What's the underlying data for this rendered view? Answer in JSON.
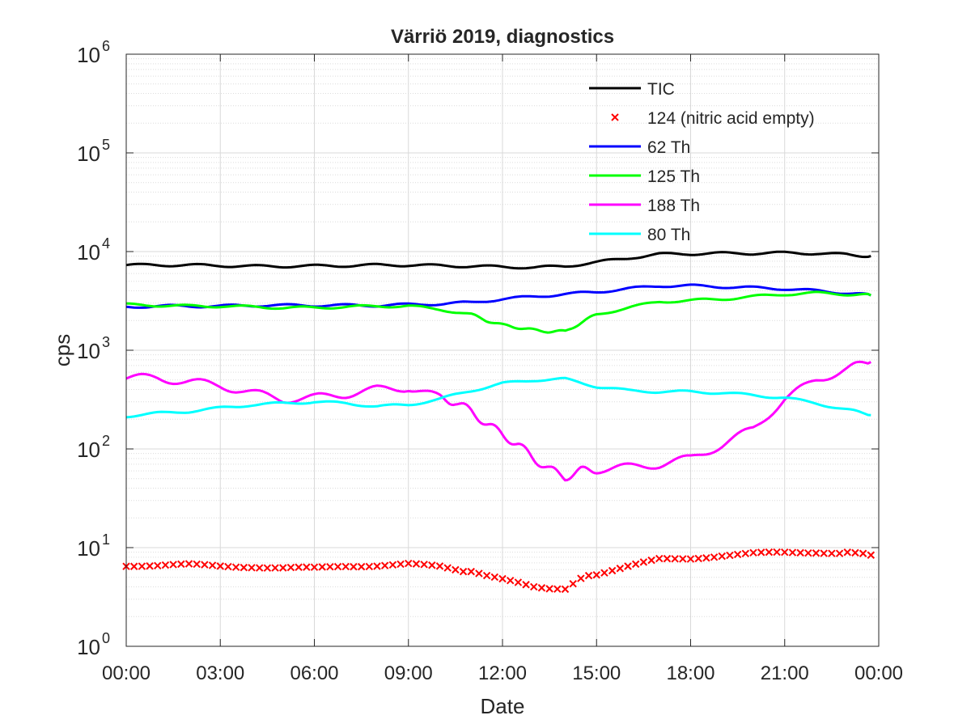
{
  "chart_data": {
    "type": "line",
    "title": "Värriö 2019, diagnostics",
    "xlabel": "Date",
    "ylabel": "cps",
    "x_ticks": [
      "00:00",
      "03:00",
      "06:00",
      "09:00",
      "12:00",
      "15:00",
      "18:00",
      "21:00",
      "00:00"
    ],
    "xlim_hours": [
      0,
      24
    ],
    "y_scale": "log",
    "ylim": [
      1,
      1000000
    ],
    "y_ticks": [
      {
        "base": "10",
        "exp": "0"
      },
      {
        "base": "10",
        "exp": "1"
      },
      {
        "base": "10",
        "exp": "2"
      },
      {
        "base": "10",
        "exp": "3"
      },
      {
        "base": "10",
        "exp": "4"
      },
      {
        "base": "10",
        "exp": "5"
      },
      {
        "base": "10",
        "exp": "6"
      }
    ],
    "grid": true,
    "legend_position": "top-right",
    "series": [
      {
        "name": "TIC",
        "color": "#000000",
        "style": "line",
        "x": [
          "00:00",
          "01:00",
          "02:00",
          "03:00",
          "04:00",
          "05:00",
          "06:00",
          "07:00",
          "08:00",
          "09:00",
          "10:00",
          "11:00",
          "12:00",
          "13:00",
          "14:00",
          "15:00",
          "16:00",
          "17:00",
          "18:00",
          "19:00",
          "20:00",
          "21:00",
          "22:00",
          "23:00",
          "23:45"
        ],
        "y": [
          7300,
          7300,
          7300,
          7200,
          7100,
          7100,
          7150,
          7200,
          7300,
          7300,
          7200,
          7100,
          7000,
          6900,
          7100,
          7800,
          8600,
          9400,
          9500,
          9600,
          9600,
          9700,
          9600,
          9300,
          9000
        ]
      },
      {
        "name": "124 (nitric acid empty)",
        "color": "#ff0000",
        "style": "marker",
        "x": [
          "00:00",
          "01:00",
          "02:00",
          "03:00",
          "04:00",
          "05:00",
          "06:00",
          "07:00",
          "08:00",
          "09:00",
          "10:00",
          "11:00",
          "11:30",
          "12:00",
          "12:30",
          "13:00",
          "13:30",
          "14:00",
          "14:30",
          "15:00",
          "16:00",
          "17:00",
          "18:00",
          "19:00",
          "20:00",
          "21:00",
          "22:00",
          "23:00",
          "23:45"
        ],
        "y": [
          6.6,
          6.6,
          6.7,
          6.5,
          6.4,
          6.2,
          6.2,
          6.5,
          6.6,
          6.8,
          6.4,
          5.6,
          5.1,
          4.8,
          4.5,
          4.1,
          3.9,
          3.8,
          4.8,
          5.4,
          6.4,
          7.6,
          7.8,
          8.3,
          8.7,
          8.9,
          9.0,
          8.8,
          8.4
        ]
      },
      {
        "name": "62 Th",
        "color": "#0000ff",
        "style": "line",
        "x": [
          "00:00",
          "01:00",
          "02:00",
          "03:00",
          "04:00",
          "05:00",
          "06:00",
          "07:00",
          "08:00",
          "09:00",
          "10:00",
          "11:00",
          "12:00",
          "13:00",
          "14:00",
          "15:00",
          "16:00",
          "17:00",
          "18:00",
          "19:00",
          "20:00",
          "21:00",
          "22:00",
          "23:00",
          "23:45"
        ],
        "y": [
          2750,
          2800,
          2800,
          2800,
          2850,
          2850,
          2850,
          2850,
          2850,
          2900,
          2950,
          3050,
          3300,
          3500,
          3700,
          3900,
          4200,
          4500,
          4500,
          4400,
          4300,
          4200,
          4000,
          3800,
          3600
        ]
      },
      {
        "name": "125 Th",
        "color": "#00ff00",
        "style": "line",
        "x": [
          "00:00",
          "01:00",
          "02:00",
          "03:00",
          "04:00",
          "05:00",
          "06:00",
          "07:00",
          "08:00",
          "09:00",
          "10:00",
          "11:00",
          "11:30",
          "12:00",
          "12:30",
          "13:00",
          "13:30",
          "14:00",
          "14:30",
          "15:00",
          "16:00",
          "17:00",
          "18:00",
          "19:00",
          "20:00",
          "21:00",
          "22:00",
          "23:00",
          "23:45"
        ],
        "y": [
          2900,
          2850,
          2800,
          2800,
          2750,
          2700,
          2700,
          2750,
          2800,
          2800,
          2600,
          2300,
          2000,
          1800,
          1700,
          1600,
          1550,
          1550,
          1900,
          2300,
          2700,
          3100,
          3200,
          3300,
          3500,
          3700,
          3800,
          3700,
          3600
        ]
      },
      {
        "name": "188 Th",
        "color": "#ff00ff",
        "style": "line",
        "x": [
          "00:00",
          "01:00",
          "02:00",
          "03:00",
          "04:00",
          "05:00",
          "06:00",
          "07:00",
          "08:00",
          "09:00",
          "10:00",
          "10:30",
          "11:00",
          "11:30",
          "12:00",
          "12:30",
          "13:00",
          "13:30",
          "14:00",
          "14:30",
          "15:00",
          "16:00",
          "17:00",
          "18:00",
          "19:00",
          "20:00",
          "21:00",
          "22:00",
          "23:00",
          "23:45"
        ],
        "y": [
          530,
          520,
          480,
          440,
          370,
          320,
          330,
          360,
          400,
          420,
          330,
          300,
          240,
          180,
          140,
          110,
          80,
          62,
          52,
          60,
          62,
          65,
          70,
          80,
          110,
          160,
          320,
          500,
          650,
          760
        ]
      },
      {
        "name": "80 Th",
        "color": "#00ffff",
        "style": "line",
        "x": [
          "00:00",
          "01:00",
          "02:00",
          "03:00",
          "04:00",
          "05:00",
          "06:00",
          "07:00",
          "08:00",
          "09:00",
          "10:00",
          "11:00",
          "12:00",
          "13:00",
          "14:00",
          "15:00",
          "16:00",
          "17:00",
          "18:00",
          "19:00",
          "20:00",
          "21:00",
          "22:00",
          "23:00",
          "23:45"
        ],
        "y": [
          215,
          230,
          240,
          260,
          280,
          290,
          300,
          290,
          270,
          280,
          320,
          390,
          460,
          500,
          510,
          430,
          390,
          380,
          380,
          370,
          350,
          330,
          290,
          250,
          220
        ]
      }
    ]
  }
}
